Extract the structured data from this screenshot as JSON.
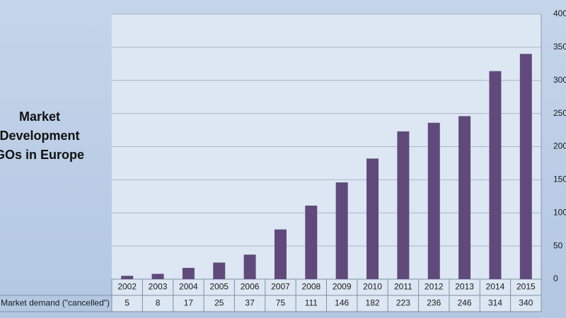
{
  "chart_data": {
    "type": "bar",
    "title": "Market Development GOs in Europe",
    "series_label": "Market demand (\"cancelled\")",
    "categories": [
      "2002",
      "2003",
      "2004",
      "2005",
      "2006",
      "2007",
      "2008",
      "2009",
      "2010",
      "2011",
      "2012",
      "2013",
      "2014",
      "2015"
    ],
    "values": [
      5,
      8,
      17,
      25,
      37,
      75,
      111,
      146,
      182,
      223,
      236,
      246,
      314,
      340
    ],
    "color": "#604a7b",
    "ylim": [
      0,
      400
    ],
    "yticks": [
      0,
      50,
      100,
      150,
      200,
      250,
      300,
      350,
      400
    ],
    "grid": true
  }
}
